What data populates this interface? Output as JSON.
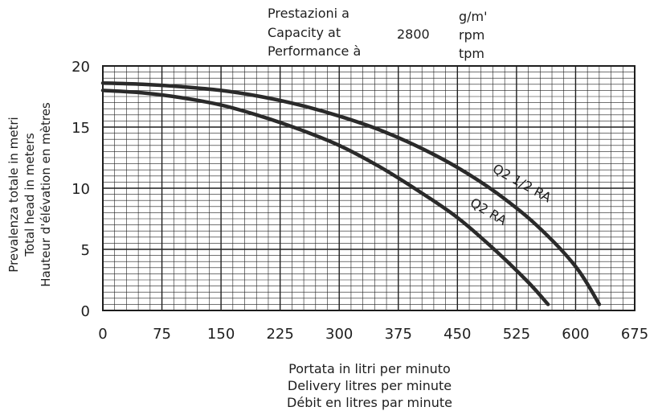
{
  "header": {
    "label_lines": [
      "Prestazioni a",
      "Capacity at",
      "Performance à"
    ],
    "speed": "2800",
    "unit_lines": [
      "g/m'",
      "rpm",
      "tpm"
    ]
  },
  "chart_data": {
    "type": "line",
    "title": "",
    "xlabel": [
      "Portata in litri per minuto",
      "Delivery litres per minute",
      "Débit en litres par minute"
    ],
    "ylabel": [
      "Prevalenza totale in metri",
      "Total head in meters",
      "Hauteur d'élévation en mètres"
    ],
    "xlim": [
      0,
      675
    ],
    "ylim": [
      0,
      20
    ],
    "xticks": [
      0,
      75,
      150,
      225,
      300,
      375,
      450,
      525,
      600,
      675
    ],
    "yticks": [
      0,
      5,
      10,
      15,
      20
    ],
    "grid": true,
    "series": [
      {
        "name": "Q2 1/2 RA",
        "color": "#2a2a2a",
        "x": [
          0,
          50,
          100,
          150,
          200,
          250,
          300,
          350,
          400,
          450,
          500,
          550,
          600,
          630
        ],
        "y": [
          18.6,
          18.5,
          18.3,
          18.0,
          17.5,
          16.8,
          15.9,
          14.8,
          13.4,
          11.7,
          9.6,
          7.0,
          3.6,
          0.5
        ]
      },
      {
        "name": "Q2 RA",
        "color": "#2a2a2a",
        "x": [
          0,
          50,
          100,
          150,
          200,
          250,
          300,
          350,
          400,
          450,
          500,
          540,
          565
        ],
        "y": [
          18.0,
          17.8,
          17.4,
          16.8,
          15.9,
          14.8,
          13.5,
          11.8,
          9.8,
          7.6,
          4.8,
          2.3,
          0.5
        ]
      }
    ]
  }
}
